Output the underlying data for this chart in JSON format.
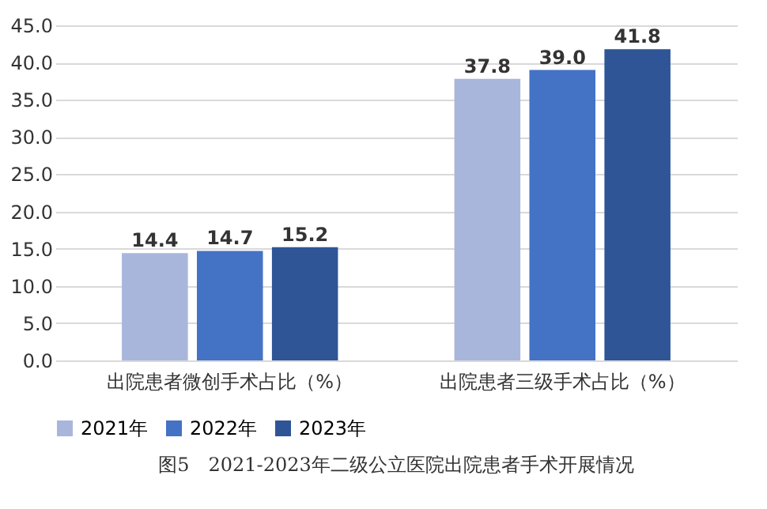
{
  "chart_data": {
    "type": "bar",
    "title": "图5　2021-2023年二级公立医院出院患者手术开展情况",
    "categories": [
      "出院患者微创手术占比（%）",
      "出院患者三级手术占比（%）"
    ],
    "series": [
      {
        "name": "2021年",
        "color": "#a9b6dc",
        "values": [
          14.4,
          37.8
        ],
        "value_labels": [
          "14.4",
          "37.8"
        ]
      },
      {
        "name": "2022年",
        "color": "#4472c4",
        "values": [
          14.7,
          39.0
        ],
        "value_labels": [
          "14.7",
          "39.0"
        ]
      },
      {
        "name": "2023年",
        "color": "#2f5597",
        "values": [
          15.2,
          41.8
        ],
        "value_labels": [
          "15.2",
          "41.8"
        ]
      }
    ],
    "ylim": [
      0,
      45
    ],
    "yticks": [
      {
        "value": 0,
        "label": "0.0"
      },
      {
        "value": 5,
        "label": "5.0"
      },
      {
        "value": 10,
        "label": "10.0"
      },
      {
        "value": 15,
        "label": "15.0"
      },
      {
        "value": 20,
        "label": "20.0"
      },
      {
        "value": 25,
        "label": "25.0"
      },
      {
        "value": 30,
        "label": "30.0"
      },
      {
        "value": 35,
        "label": "35.0"
      },
      {
        "value": 40,
        "label": "40.0"
      },
      {
        "value": 45,
        "label": "45.0"
      }
    ],
    "grid": "y",
    "legend": "bottom"
  }
}
